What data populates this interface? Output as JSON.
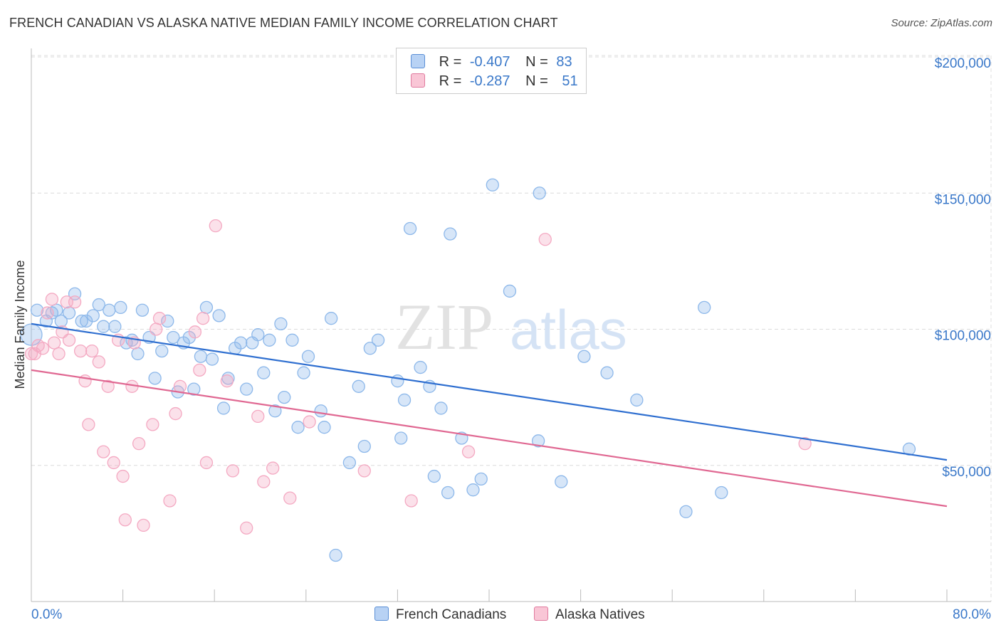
{
  "title": "FRENCH CANADIAN VS ALASKA NATIVE MEDIAN FAMILY INCOME CORRELATION CHART",
  "source": "Source: ZipAtlas.com",
  "watermark": {
    "part1": "ZIP",
    "part2": "atlas"
  },
  "legend": {
    "rows": [
      {
        "r_label": "R =",
        "r_value": "-0.407",
        "n_label": "N =",
        "n_value": "83",
        "color": "#b8d2f4",
        "border": "#5b8fd6"
      },
      {
        "r_label": "R =",
        "r_value": "-0.287",
        "n_label": "N =",
        "n_value": "51",
        "color": "#f9c6d6",
        "border": "#e07a9e"
      }
    ]
  },
  "chart_data": {
    "type": "scatter",
    "title": "FRENCH CANADIAN VS ALASKA NATIVE MEDIAN FAMILY INCOME CORRELATION CHART",
    "xlabel": "",
    "ylabel": "Median Family Income",
    "xlim": [
      0,
      80
    ],
    "ylim": [
      0,
      210000
    ],
    "x_tick_labels": [
      "0.0%",
      "80.0%"
    ],
    "y_ticks": [
      50000,
      100000,
      150000,
      200000
    ],
    "y_tick_labels": [
      "$50,000",
      "$100,000",
      "$150,000",
      "$200,000"
    ],
    "grid": true,
    "legend_position": "bottom-center",
    "series": [
      {
        "name": "French Canadians",
        "color": "#8db8ea",
        "line_color": "#2f6fd0",
        "trend": {
          "x": [
            0,
            80
          ],
          "y": [
            102000,
            52000
          ]
        },
        "points": [
          [
            0.0,
            98000
          ],
          [
            0.5,
            107000
          ],
          [
            1.3,
            103000
          ],
          [
            1.8,
            106000
          ],
          [
            2.2,
            107000
          ],
          [
            2.6,
            103000
          ],
          [
            3.3,
            106000
          ],
          [
            3.8,
            113000
          ],
          [
            4.4,
            103000
          ],
          [
            4.8,
            103000
          ],
          [
            5.4,
            105000
          ],
          [
            5.9,
            109000
          ],
          [
            6.3,
            101000
          ],
          [
            6.8,
            107000
          ],
          [
            7.3,
            101000
          ],
          [
            7.8,
            108000
          ],
          [
            8.3,
            95000
          ],
          [
            8.8,
            96000
          ],
          [
            9.3,
            91000
          ],
          [
            9.7,
            107000
          ],
          [
            10.3,
            97000
          ],
          [
            10.8,
            82000
          ],
          [
            11.4,
            92000
          ],
          [
            11.9,
            103000
          ],
          [
            12.4,
            97000
          ],
          [
            12.8,
            77000
          ],
          [
            13.3,
            95000
          ],
          [
            13.8,
            97000
          ],
          [
            14.2,
            78000
          ],
          [
            14.8,
            90000
          ],
          [
            15.3,
            108000
          ],
          [
            15.8,
            89000
          ],
          [
            16.4,
            105000
          ],
          [
            16.8,
            71000
          ],
          [
            17.2,
            82000
          ],
          [
            17.8,
            93000
          ],
          [
            18.3,
            95000
          ],
          [
            18.8,
            78000
          ],
          [
            19.3,
            95000
          ],
          [
            19.8,
            98000
          ],
          [
            20.3,
            84000
          ],
          [
            20.8,
            96000
          ],
          [
            21.3,
            70000
          ],
          [
            21.8,
            102000
          ],
          [
            22.1,
            75000
          ],
          [
            22.8,
            96000
          ],
          [
            23.3,
            64000
          ],
          [
            23.8,
            84000
          ],
          [
            24.2,
            90000
          ],
          [
            25.3,
            70000
          ],
          [
            25.6,
            64000
          ],
          [
            26.2,
            104000
          ],
          [
            26.6,
            17000
          ],
          [
            27.8,
            51000
          ],
          [
            28.6,
            79000
          ],
          [
            29.1,
            57000
          ],
          [
            29.6,
            93000
          ],
          [
            30.3,
            96000
          ],
          [
            32.0,
            81000
          ],
          [
            32.3,
            60000
          ],
          [
            32.6,
            74000
          ],
          [
            33.1,
            137000
          ],
          [
            34.0,
            86000
          ],
          [
            34.8,
            79000
          ],
          [
            35.2,
            46000
          ],
          [
            35.8,
            71000
          ],
          [
            36.4,
            40000
          ],
          [
            36.6,
            135000
          ],
          [
            37.6,
            60000
          ],
          [
            38.6,
            41000
          ],
          [
            39.3,
            45000
          ],
          [
            40.3,
            153000
          ],
          [
            41.8,
            114000
          ],
          [
            44.3,
            59000
          ],
          [
            44.4,
            150000
          ],
          [
            46.3,
            44000
          ],
          [
            48.3,
            90000
          ],
          [
            50.3,
            84000
          ],
          [
            52.9,
            74000
          ],
          [
            57.2,
            33000
          ],
          [
            58.8,
            108000
          ],
          [
            60.3,
            40000
          ],
          [
            76.7,
            56000
          ]
        ],
        "sizes": {
          "0": 30
        }
      },
      {
        "name": "Alaska Natives",
        "color": "#f4a9c2",
        "line_color": "#e06892",
        "trend": {
          "x": [
            0,
            80
          ],
          "y": [
            85000,
            35000
          ]
        },
        "points": [
          [
            0.0,
            91000
          ],
          [
            0.6,
            94000
          ],
          [
            1.0,
            93000
          ],
          [
            1.4,
            106000
          ],
          [
            1.8,
            111000
          ],
          [
            2.0,
            95000
          ],
          [
            2.4,
            91000
          ],
          [
            2.7,
            99000
          ],
          [
            3.1,
            110000
          ],
          [
            3.3,
            96000
          ],
          [
            3.8,
            110000
          ],
          [
            4.3,
            92000
          ],
          [
            4.7,
            81000
          ],
          [
            5.0,
            65000
          ],
          [
            5.3,
            92000
          ],
          [
            5.9,
            88000
          ],
          [
            6.3,
            55000
          ],
          [
            6.7,
            79000
          ],
          [
            7.2,
            51000
          ],
          [
            7.6,
            96000
          ],
          [
            8.0,
            46000
          ],
          [
            8.2,
            30000
          ],
          [
            8.8,
            79000
          ],
          [
            9.0,
            95000
          ],
          [
            9.4,
            58000
          ],
          [
            9.8,
            28000
          ],
          [
            10.6,
            65000
          ],
          [
            10.9,
            100000
          ],
          [
            11.2,
            104000
          ],
          [
            12.1,
            37000
          ],
          [
            12.6,
            69000
          ],
          [
            13.0,
            79000
          ],
          [
            14.3,
            99000
          ],
          [
            14.7,
            85000
          ],
          [
            15.0,
            104000
          ],
          [
            15.3,
            51000
          ],
          [
            16.1,
            138000
          ],
          [
            17.1,
            81000
          ],
          [
            17.6,
            48000
          ],
          [
            18.8,
            27000
          ],
          [
            19.8,
            68000
          ],
          [
            20.3,
            44000
          ],
          [
            21.1,
            49000
          ],
          [
            22.6,
            38000
          ],
          [
            24.3,
            66000
          ],
          [
            29.1,
            48000
          ],
          [
            33.2,
            37000
          ],
          [
            38.2,
            55000
          ],
          [
            44.9,
            133000
          ],
          [
            67.6,
            58000
          ],
          [
            0.3,
            91000
          ]
        ]
      }
    ]
  },
  "bottom_legend": {
    "items": [
      "French Canadians",
      "Alaska Natives"
    ]
  }
}
